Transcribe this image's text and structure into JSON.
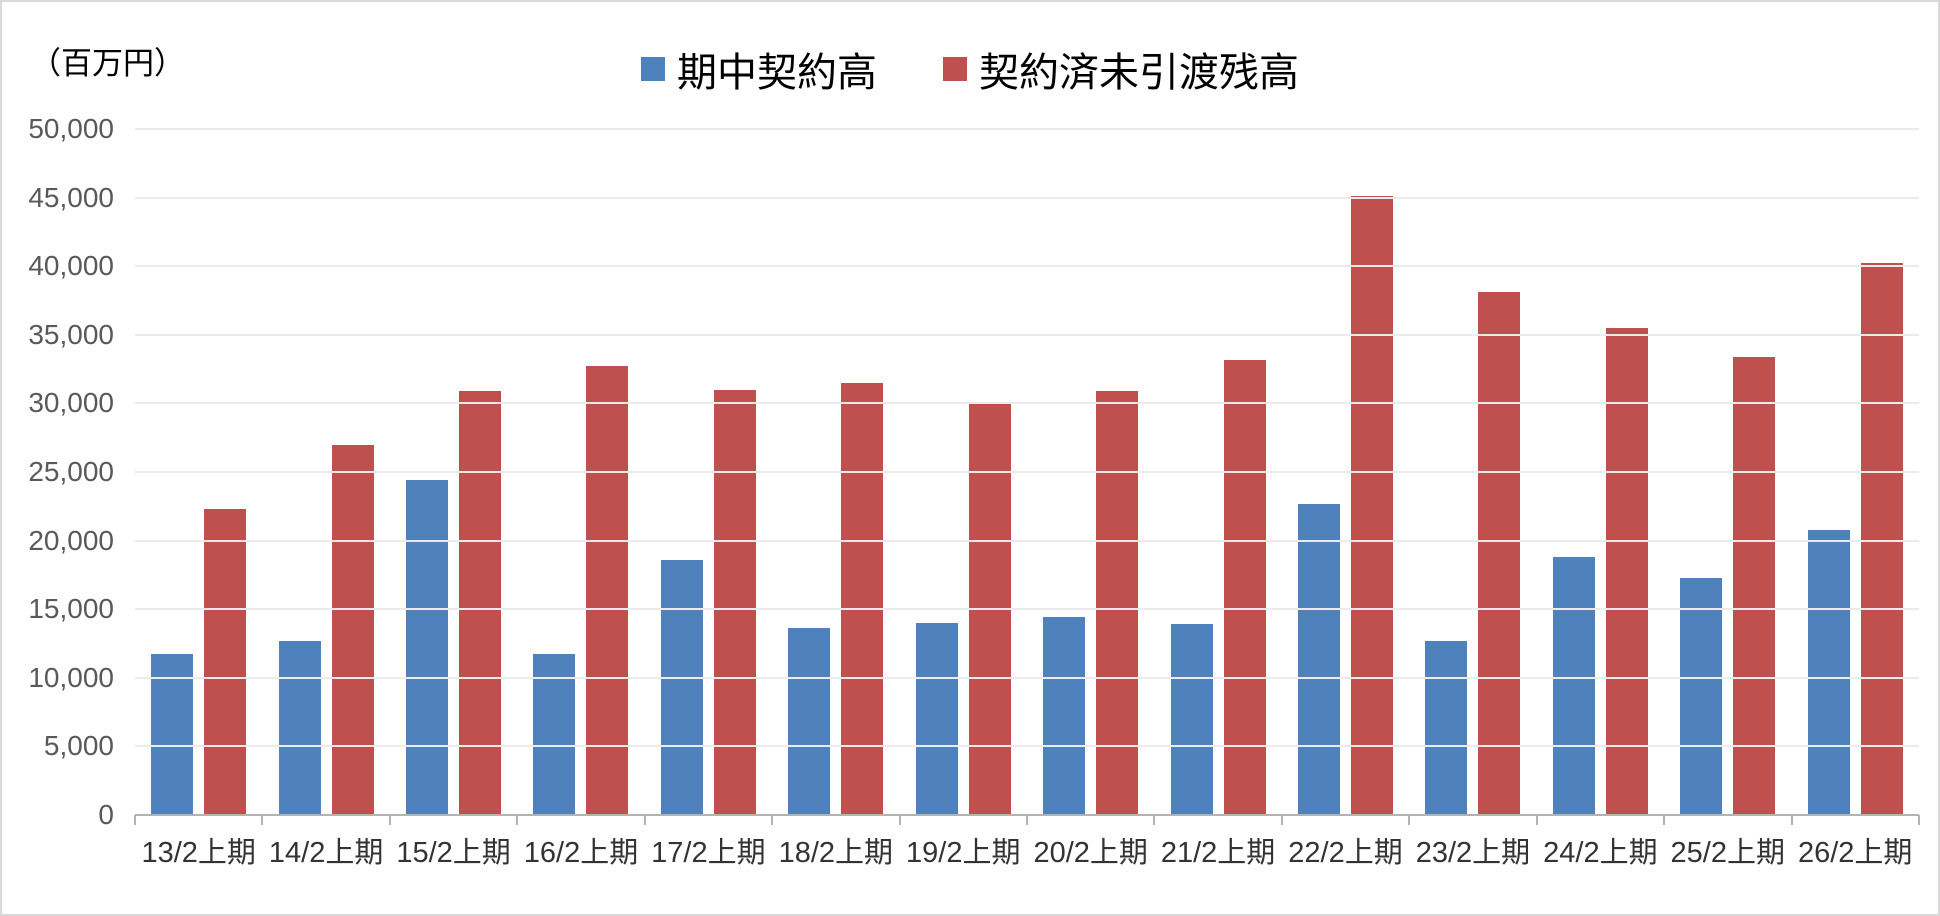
{
  "unit_label": "（百万円）",
  "colors": {
    "series_blue": "#4f81bd",
    "series_red": "#c0504d",
    "gridline": "#ebebeb",
    "axis": "#b3b3b3",
    "y_tick_label": "#595959",
    "x_tick_label": "#333333",
    "frame_border": "#d9d9d9",
    "background": "#ffffff"
  },
  "chart_data": {
    "type": "bar",
    "title": "",
    "unit_label": "（百万円）",
    "categories": [
      "13/2上期",
      "14/2上期",
      "15/2上期",
      "16/2上期",
      "17/2上期",
      "18/2上期",
      "19/2上期",
      "20/2上期",
      "21/2上期",
      "22/2上期",
      "23/2上期",
      "24/2上期",
      "25/2上期",
      "26/2上期"
    ],
    "series": [
      {
        "name": "期中契約高",
        "key": "contracts",
        "color": "#4f81bd",
        "values": [
          11700,
          12700,
          24400,
          11700,
          18600,
          13600,
          14000,
          14400,
          13900,
          22700,
          12700,
          18800,
          17300,
          20800
        ]
      },
      {
        "name": "契約済未引渡残高",
        "key": "backlog",
        "color": "#c0504d",
        "values": [
          22300,
          27000,
          30900,
          32700,
          31000,
          31500,
          30000,
          30900,
          33200,
          45100,
          38100,
          35500,
          33400,
          40200
        ]
      }
    ],
    "xlabel": "",
    "ylabel": "（百万円）",
    "ylim": [
      0,
      50000
    ],
    "ytick_step": 5000,
    "ytick_labels": [
      "0",
      "5,000",
      "10,000",
      "15,000",
      "20,000",
      "25,000",
      "30,000",
      "35,000",
      "40,000",
      "45,000",
      "50,000"
    ],
    "grid": true,
    "legend_position": "top-center"
  }
}
